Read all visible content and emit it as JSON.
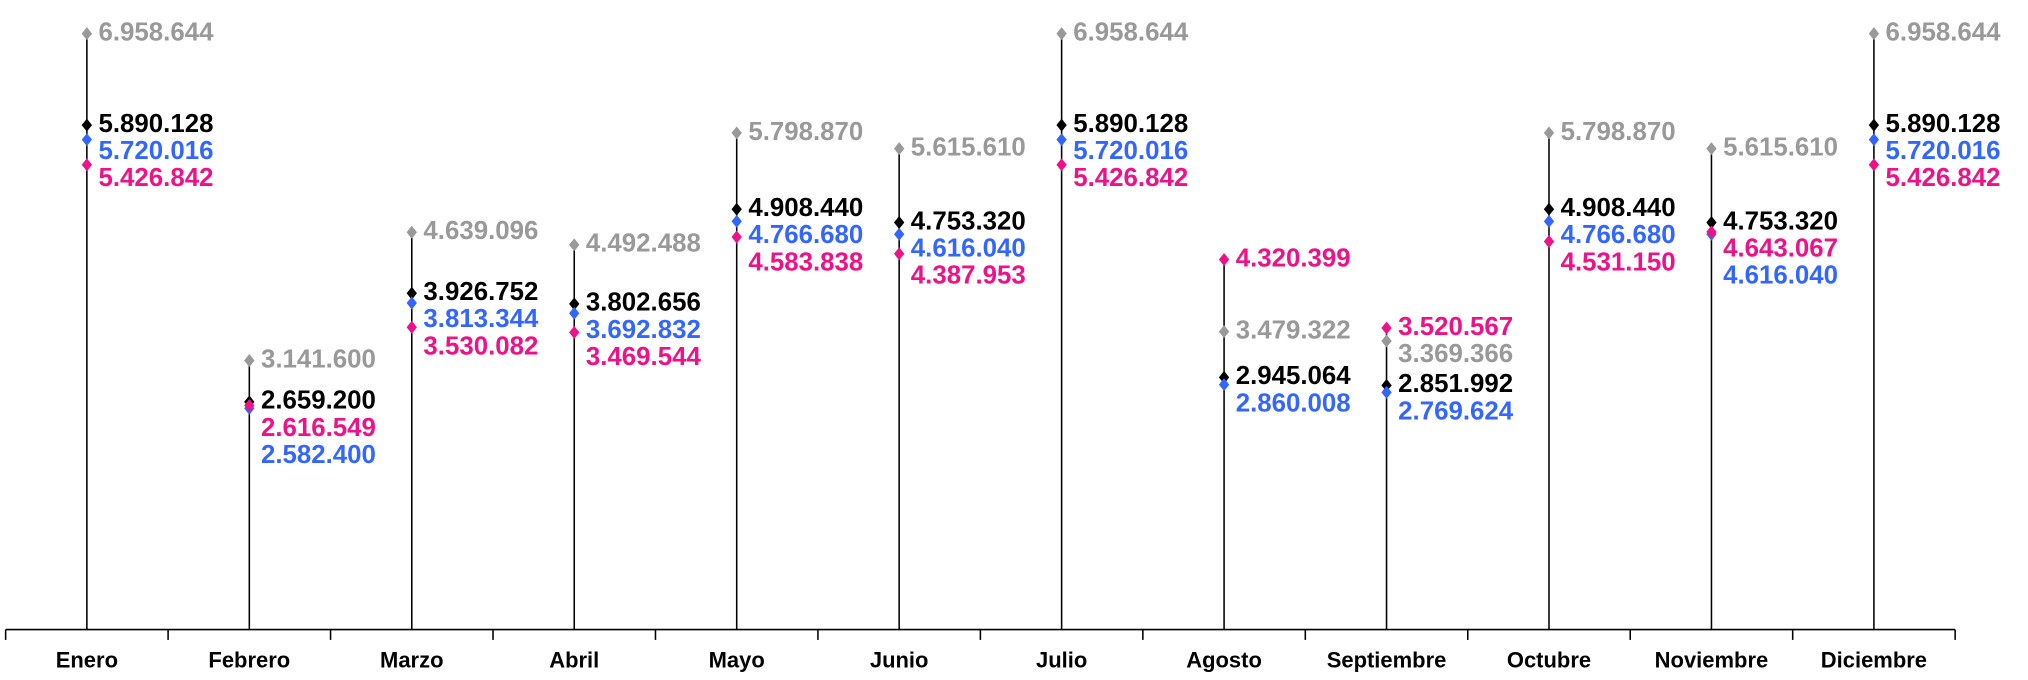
{
  "chart_data": {
    "type": "line",
    "categories": [
      "Enero",
      "Febrero",
      "Marzo",
      "Abril",
      "Mayo",
      "Junio",
      "Julio",
      "Agosto",
      "Septiembre",
      "Octubre",
      "Noviembre",
      "Diciembre"
    ],
    "ylim": [
      0,
      7200000
    ],
    "series": [
      {
        "color": "#999999",
        "values": [
          6958644,
          3141600,
          4639096,
          4492488,
          5798870,
          5615610,
          6958644,
          3479322,
          3369366,
          5798870,
          5615610,
          6958644
        ],
        "value_labels": [
          "6.958.644",
          "3.141.600",
          "4.639.096",
          "4.492.488",
          "5.798.870",
          "5.615.610",
          "6.958.644",
          "3.479.322",
          "3.369.366",
          "5.798.870",
          "5.615.610",
          "6.958.644"
        ]
      },
      {
        "color": "#000000",
        "values": [
          5890128,
          2659200,
          3926752,
          3802656,
          4908440,
          4753320,
          5890128,
          2945064,
          2851992,
          4908440,
          4753320,
          5890128
        ],
        "value_labels": [
          "5.890.128",
          "2.659.200",
          "3.926.752",
          "3.802.656",
          "4.908.440",
          "4.753.320",
          "5.890.128",
          "2.945.064",
          "2.851.992",
          "4.908.440",
          "4.753.320",
          "5.890.128"
        ]
      },
      {
        "color": "#3366ff",
        "values": [
          5720016,
          2582400,
          3813344,
          3692832,
          4766680,
          4616040,
          5720016,
          2860008,
          2769624,
          4766680,
          4616040,
          5720016
        ],
        "value_labels": [
          "5.720.016",
          "2.582.400",
          "3.813.344",
          "3.692.832",
          "4.766.680",
          "4.616.040",
          "5.720.016",
          "2.860.008",
          "2.769.624",
          "4.766.680",
          "4.616.040",
          "5.720.016"
        ]
      },
      {
        "color": "#ee1188",
        "values": [
          5426842,
          2616549,
          3530082,
          3469544,
          4583838,
          4387953,
          5426842,
          4320399,
          3520567,
          4531150,
          4643067,
          5426842
        ],
        "value_labels": [
          "5.426.842",
          "2.616.549",
          "3.530.082",
          "3.469.544",
          "4.583.838",
          "4.387.953",
          "5.426.842",
          "4.320.399",
          "3.520.567",
          "4.531.150",
          "4.643.067",
          "5.426.842"
        ]
      }
    ]
  }
}
